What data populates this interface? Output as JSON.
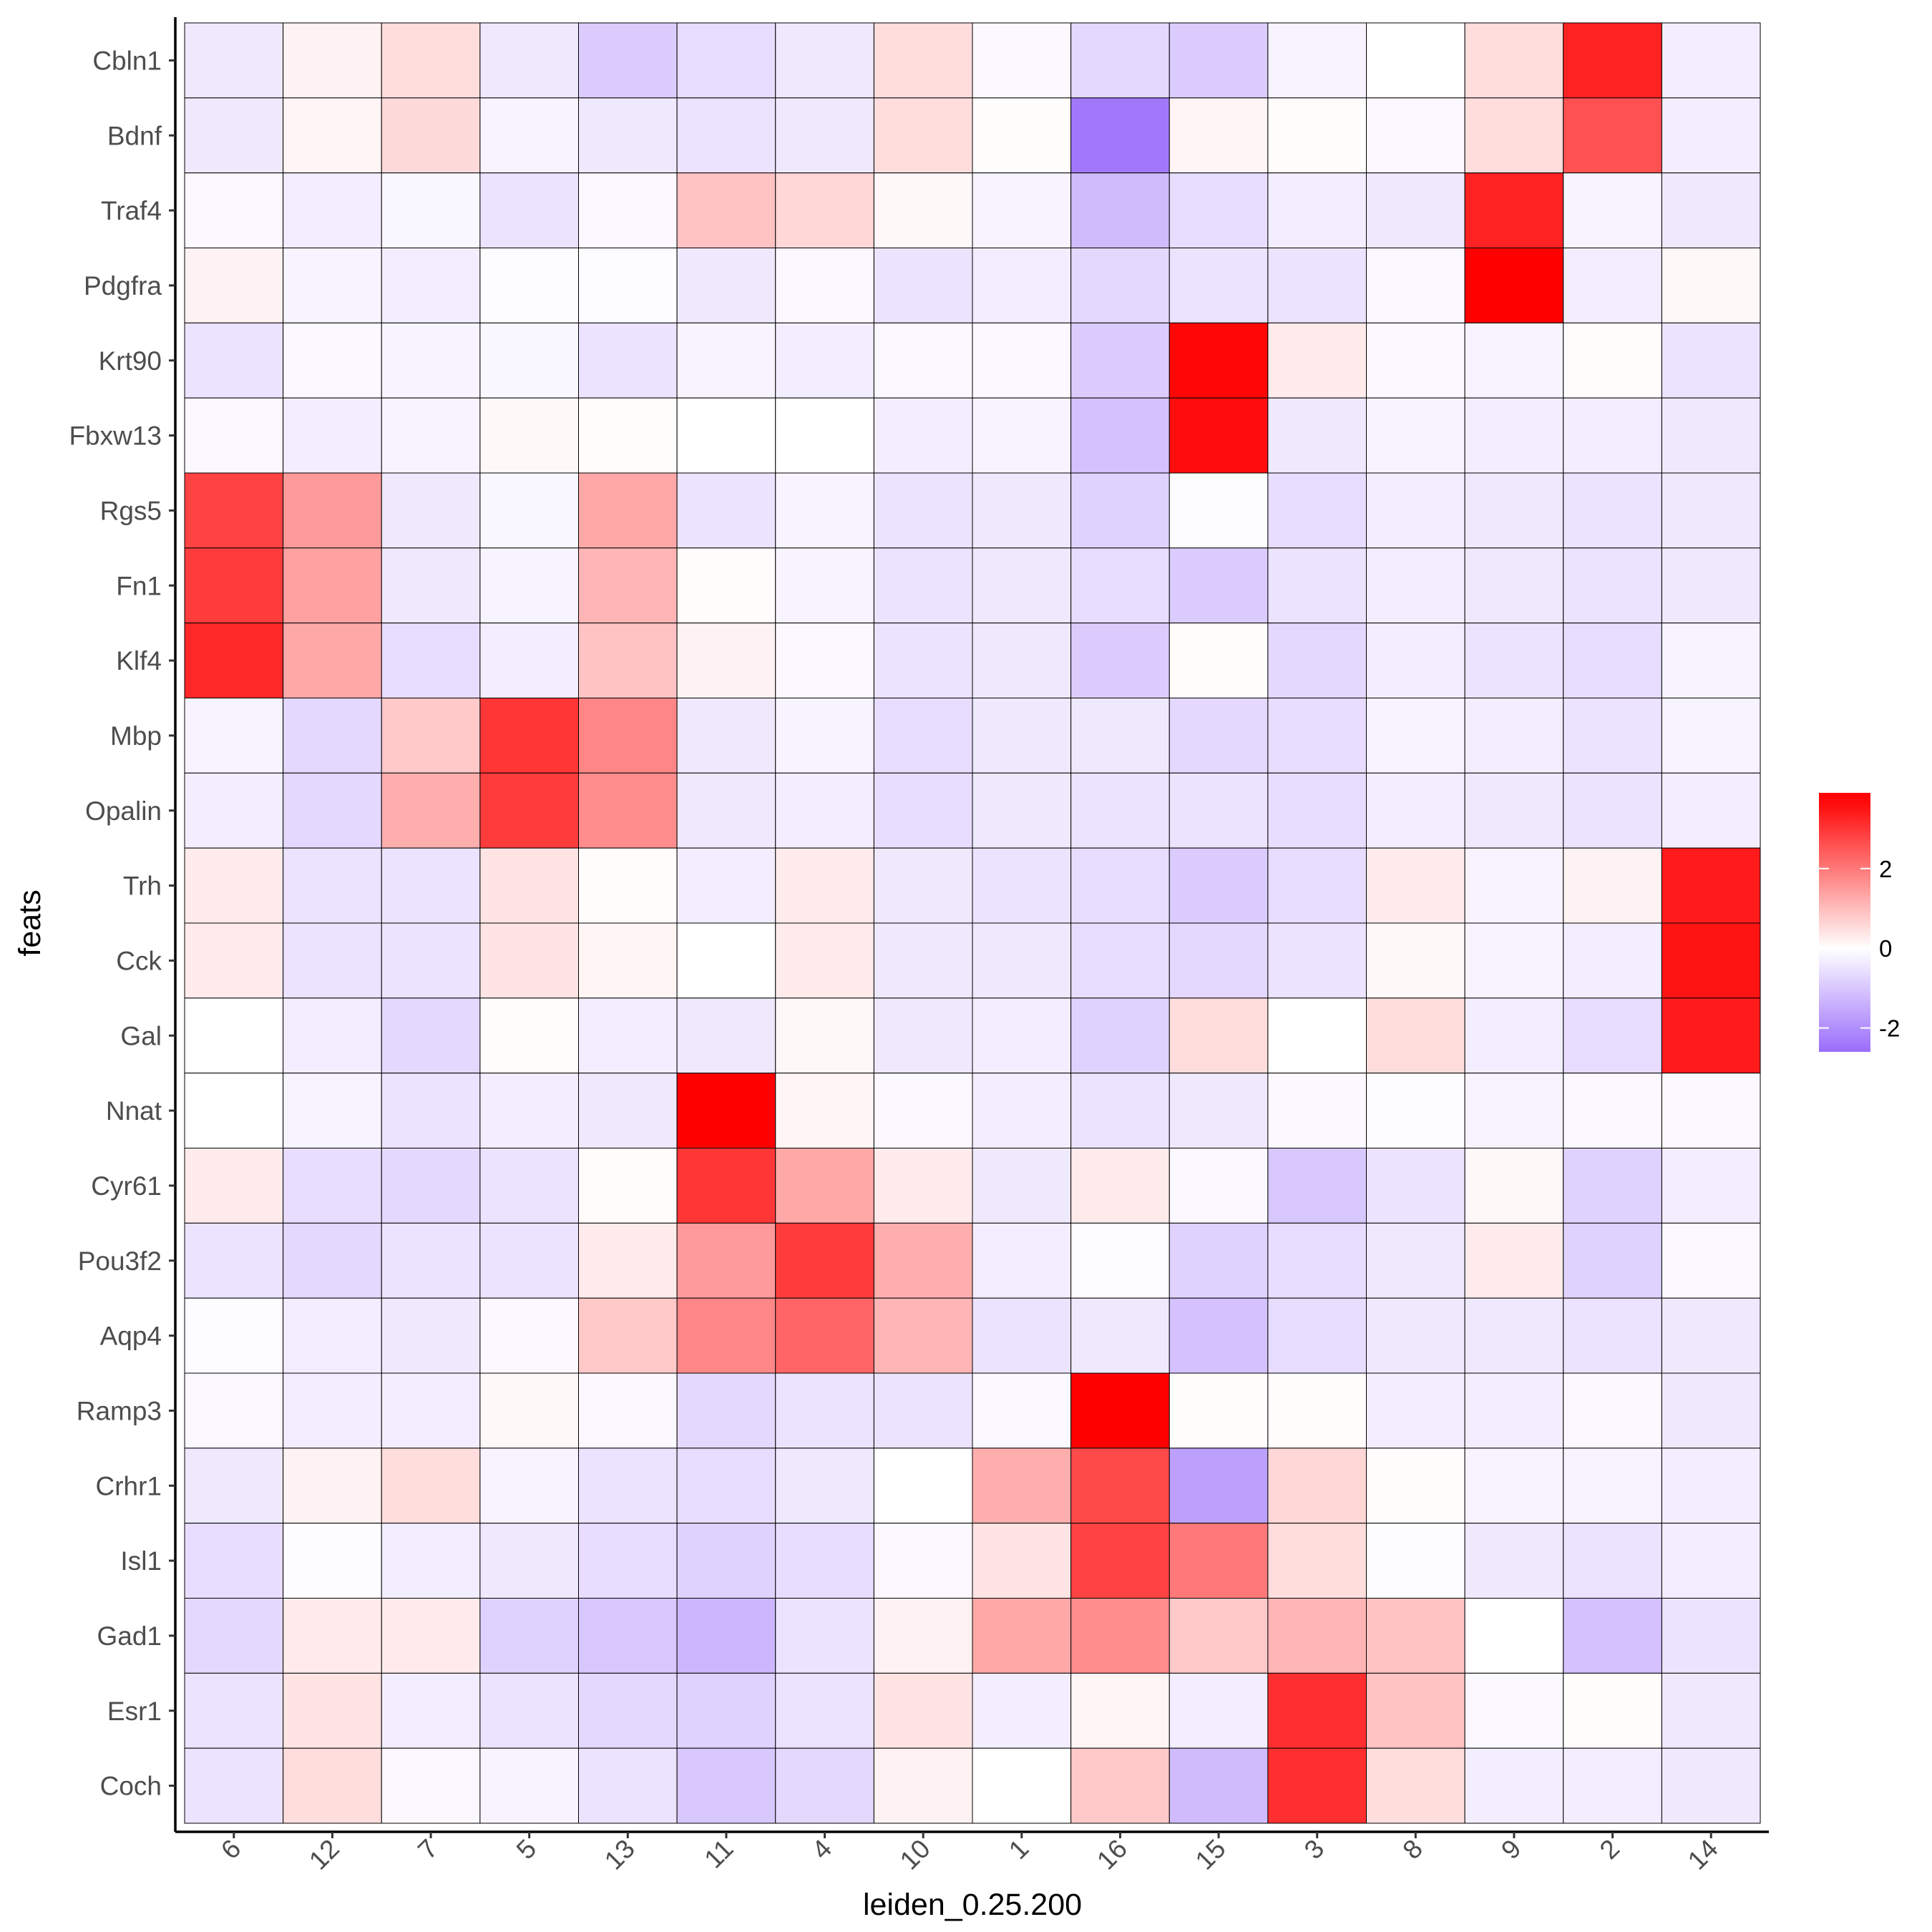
{
  "chart_data": {
    "type": "heatmap",
    "title": "",
    "xlabel": "leiden_0.25.200",
    "ylabel": "feats",
    "x_categories": [
      "6",
      "12",
      "7",
      "5",
      "13",
      "11",
      "4",
      "10",
      "1",
      "16",
      "15",
      "3",
      "8",
      "9",
      "2",
      "14"
    ],
    "y_categories": [
      "Cbln1",
      "Bdnf",
      "Traf4",
      "Pdgfra",
      "Krt90",
      "Fbxw13",
      "Rgs5",
      "Fn1",
      "Klf4",
      "Mbp",
      "Opalin",
      "Trh",
      "Cck",
      "Gal",
      "Nnat",
      "Cyr61",
      "Pou3f2",
      "Aqp4",
      "Ramp3",
      "Crhr1",
      "Isl1",
      "Gad1",
      "Esr1",
      "Coch"
    ],
    "values": [
      [
        -0.4,
        0.2,
        0.5,
        -0.4,
        -0.9,
        -0.6,
        -0.4,
        0.5,
        -0.1,
        -0.7,
        -0.9,
        -0.2,
        0.0,
        0.5,
        3.3,
        -0.3
      ],
      [
        -0.4,
        0.15,
        0.55,
        -0.2,
        -0.4,
        -0.5,
        -0.4,
        0.5,
        0.05,
        -2.4,
        0.15,
        0.05,
        -0.1,
        0.5,
        2.6,
        -0.3
      ],
      [
        -0.1,
        -0.3,
        -0.15,
        -0.5,
        -0.1,
        0.9,
        0.6,
        0.1,
        -0.2,
        -1.2,
        -0.6,
        -0.3,
        -0.4,
        3.3,
        -0.2,
        -0.4
      ],
      [
        0.2,
        -0.2,
        -0.3,
        -0.05,
        -0.05,
        -0.4,
        -0.1,
        -0.5,
        -0.3,
        -0.7,
        -0.5,
        -0.5,
        -0.1,
        3.8,
        -0.3,
        0.1
      ],
      [
        -0.5,
        -0.1,
        -0.2,
        -0.15,
        -0.5,
        -0.2,
        -0.3,
        -0.1,
        -0.1,
        -0.9,
        3.7,
        0.3,
        -0.1,
        -0.2,
        0.05,
        -0.5
      ],
      [
        -0.1,
        -0.3,
        -0.2,
        0.1,
        0.05,
        0.0,
        0.0,
        -0.3,
        -0.2,
        -1.1,
        3.6,
        -0.4,
        -0.2,
        -0.3,
        -0.3,
        -0.4
      ],
      [
        2.8,
        1.5,
        -0.4,
        -0.15,
        1.3,
        -0.5,
        -0.2,
        -0.5,
        -0.4,
        -0.8,
        -0.05,
        -0.6,
        -0.3,
        -0.4,
        -0.5,
        -0.4
      ],
      [
        2.9,
        1.4,
        -0.4,
        -0.2,
        1.1,
        0.05,
        -0.2,
        -0.5,
        -0.4,
        -0.6,
        -0.9,
        -0.5,
        -0.3,
        -0.4,
        -0.5,
        -0.4
      ],
      [
        3.2,
        1.3,
        -0.6,
        -0.3,
        0.9,
        0.2,
        -0.1,
        -0.5,
        -0.4,
        -0.9,
        0.05,
        -0.7,
        -0.3,
        -0.5,
        -0.6,
        -0.2
      ],
      [
        -0.2,
        -0.7,
        0.8,
        3.0,
        1.8,
        -0.4,
        -0.2,
        -0.6,
        -0.4,
        -0.4,
        -0.7,
        -0.6,
        -0.2,
        -0.3,
        -0.5,
        -0.2
      ],
      [
        -0.3,
        -0.7,
        1.2,
        2.9,
        1.7,
        -0.4,
        -0.3,
        -0.6,
        -0.4,
        -0.5,
        -0.5,
        -0.6,
        -0.3,
        -0.4,
        -0.5,
        -0.3
      ],
      [
        0.3,
        -0.5,
        -0.5,
        0.4,
        0.05,
        -0.3,
        0.3,
        -0.4,
        -0.5,
        -0.6,
        -0.9,
        -0.6,
        0.3,
        -0.2,
        0.2,
        3.4
      ],
      [
        0.3,
        -0.5,
        -0.5,
        0.4,
        0.15,
        0.0,
        0.3,
        -0.4,
        -0.4,
        -0.6,
        -0.7,
        -0.5,
        0.1,
        -0.2,
        -0.3,
        3.5
      ],
      [
        0.0,
        -0.3,
        -0.7,
        0.05,
        -0.3,
        -0.4,
        0.1,
        -0.4,
        -0.3,
        -0.8,
        0.5,
        0.0,
        0.5,
        -0.3,
        -0.6,
        3.4
      ],
      [
        0.0,
        -0.2,
        -0.5,
        -0.3,
        -0.4,
        3.9,
        0.15,
        -0.1,
        -0.3,
        -0.5,
        -0.4,
        -0.1,
        -0.05,
        -0.2,
        -0.1,
        -0.1
      ],
      [
        0.3,
        -0.6,
        -0.7,
        -0.5,
        0.05,
        3.0,
        1.3,
        0.3,
        -0.4,
        0.3,
        -0.1,
        -1.0,
        -0.5,
        0.1,
        -0.8,
        -0.3
      ],
      [
        -0.5,
        -0.7,
        -0.5,
        -0.5,
        0.3,
        1.5,
        2.9,
        1.2,
        -0.3,
        -0.05,
        -0.8,
        -0.6,
        -0.4,
        0.3,
        -0.8,
        -0.1
      ],
      [
        -0.05,
        -0.3,
        -0.4,
        -0.1,
        0.8,
        1.8,
        2.3,
        1.1,
        -0.5,
        -0.4,
        -1.1,
        -0.6,
        -0.4,
        -0.4,
        -0.5,
        -0.4
      ],
      [
        -0.1,
        -0.3,
        -0.3,
        0.1,
        -0.1,
        -0.7,
        -0.5,
        -0.5,
        -0.1,
        3.8,
        0.05,
        0.05,
        -0.3,
        -0.3,
        -0.1,
        -0.4
      ],
      [
        -0.4,
        0.2,
        0.5,
        -0.2,
        -0.5,
        -0.6,
        -0.4,
        0.0,
        1.2,
        2.7,
        -1.7,
        0.6,
        0.05,
        -0.2,
        -0.2,
        -0.3
      ],
      [
        -0.6,
        -0.05,
        -0.3,
        -0.4,
        -0.6,
        -0.8,
        -0.6,
        -0.1,
        0.4,
        2.8,
        2.0,
        0.5,
        -0.05,
        -0.4,
        -0.5,
        -0.3
      ],
      [
        -0.7,
        0.3,
        0.3,
        -0.8,
        -1.0,
        -1.3,
        -0.5,
        0.2,
        1.3,
        1.7,
        0.8,
        1.1,
        0.9,
        0.0,
        -1.1,
        -0.5
      ],
      [
        -0.5,
        0.4,
        -0.3,
        -0.5,
        -0.7,
        -0.8,
        -0.5,
        0.4,
        -0.3,
        0.15,
        -0.3,
        3.1,
        0.9,
        -0.1,
        0.05,
        -0.4
      ],
      [
        -0.5,
        0.5,
        -0.1,
        -0.2,
        -0.5,
        -1.0,
        -0.7,
        0.2,
        0.0,
        0.8,
        -1.2,
        3.1,
        0.5,
        -0.3,
        -0.3,
        -0.4
      ]
    ],
    "legend": {
      "title": "",
      "ticks": [
        2,
        0,
        -2
      ],
      "range": [
        -2.6,
        3.9
      ],
      "low_color": "#9a6dfb",
      "mid_color": "#ffffff",
      "high_color": "#ff0000",
      "position": "right"
    }
  }
}
